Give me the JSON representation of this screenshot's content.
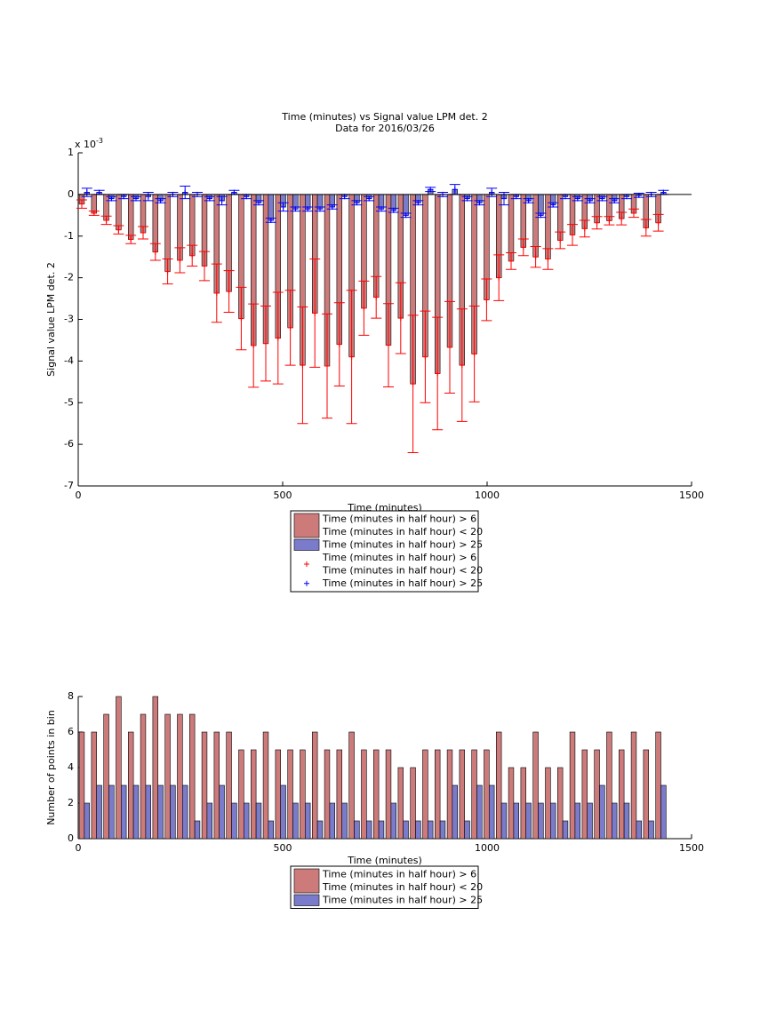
{
  "chart_data": [
    {
      "type": "bar",
      "title": "Time (minutes) vs Signal value LPM det. 2",
      "subtitle": "Data for 2016/03/26",
      "x_label": "Time (minutes)",
      "y_label": "Signal value LPM det. 2",
      "y_multiplier": {
        "base": "x 10",
        "exponent": "-3"
      },
      "x": [
        15,
        45,
        75,
        105,
        135,
        165,
        195,
        225,
        255,
        285,
        315,
        345,
        375,
        405,
        435,
        465,
        495,
        525,
        555,
        585,
        615,
        645,
        675,
        705,
        735,
        765,
        795,
        825,
        855,
        885,
        915,
        945,
        975,
        1005,
        1035,
        1065,
        1095,
        1125,
        1155,
        1185,
        1215,
        1245,
        1275,
        1305,
        1335,
        1365,
        1395,
        1425
      ],
      "xlim": [
        0,
        1500
      ],
      "xticks": [
        0,
        500,
        1000,
        1500
      ],
      "ylim": [
        -7,
        1
      ],
      "yticks": [
        -7,
        -6,
        -5,
        -4,
        -3,
        -2,
        -1,
        0,
        1
      ],
      "series": [
        {
          "name": [
            "Time (minutes in half hour) > 6",
            "Time (minutes in half hour) < 20"
          ],
          "kind": "bar",
          "color": "#cc7a7a",
          "values": [
            -0.23,
            -0.45,
            -0.62,
            -0.85,
            -1.08,
            -0.92,
            -1.38,
            -1.85,
            -1.58,
            -1.47,
            -1.72,
            -2.37,
            -2.33,
            -2.98,
            -3.63,
            -3.58,
            -3.45,
            -3.2,
            -4.1,
            -2.85,
            -4.12,
            -3.6,
            -3.9,
            -2.73,
            -2.47,
            -3.62,
            -2.97,
            -4.55,
            -3.9,
            -4.3,
            -3.67,
            -4.1,
            -3.83,
            -2.53,
            -2.0,
            -1.6,
            -1.27,
            -1.5,
            -1.55,
            -1.1,
            -0.97,
            -0.82,
            -0.68,
            -0.63,
            -0.58,
            -0.45,
            -0.8,
            -0.68
          ]
        },
        {
          "name": [
            "Time (minutes in half hour) > 25"
          ],
          "kind": "bar",
          "color": "#7b7bcc",
          "values": [
            0.05,
            0.05,
            -0.1,
            -0.05,
            -0.1,
            -0.05,
            -0.15,
            0.0,
            0.05,
            0.0,
            -0.1,
            -0.15,
            0.05,
            -0.05,
            -0.2,
            -0.62,
            -0.3,
            -0.35,
            -0.35,
            -0.35,
            -0.3,
            -0.05,
            -0.2,
            -0.1,
            -0.35,
            -0.38,
            -0.5,
            -0.2,
            0.12,
            0.0,
            0.12,
            -0.1,
            -0.2,
            0.05,
            -0.1,
            -0.05,
            -0.15,
            -0.5,
            -0.25,
            -0.05,
            -0.1,
            -0.15,
            -0.1,
            -0.15,
            -0.05,
            -0.02,
            0.0,
            0.05
          ]
        },
        {
          "name": [
            "Time (minutes in half hour) > 6",
            "Time (minutes in half hour) < 20"
          ],
          "kind": "marker",
          "color": "#ff0000",
          "values": [
            -0.23,
            -0.45,
            -0.62,
            -0.85,
            -1.08,
            -0.92,
            -1.38,
            -1.85,
            -1.58,
            -1.47,
            -1.72,
            -2.37,
            -2.33,
            -2.98,
            -3.63,
            -3.58,
            -3.45,
            -3.2,
            -4.1,
            -2.85,
            -4.12,
            -3.6,
            -3.9,
            -2.73,
            -2.47,
            -3.62,
            -2.97,
            -4.55,
            -3.9,
            -4.3,
            -3.67,
            -4.1,
            -3.83,
            -2.53,
            -2.0,
            -1.6,
            -1.27,
            -1.5,
            -1.55,
            -1.1,
            -0.97,
            -0.82,
            -0.68,
            -0.63,
            -0.58,
            -0.45,
            -0.8,
            -0.68
          ],
          "errors": [
            0.1,
            0.05,
            0.1,
            0.1,
            0.1,
            0.15,
            0.2,
            0.3,
            0.3,
            0.25,
            0.35,
            0.7,
            0.5,
            0.75,
            1.0,
            0.9,
            1.1,
            0.9,
            1.4,
            1.3,
            1.25,
            1.0,
            1.6,
            0.65,
            0.5,
            1.0,
            0.85,
            1.65,
            1.1,
            1.35,
            1.1,
            1.35,
            1.15,
            0.5,
            0.55,
            0.2,
            0.2,
            0.25,
            0.25,
            0.2,
            0.25,
            0.2,
            0.15,
            0.1,
            0.15,
            0.1,
            0.2,
            0.2
          ]
        },
        {
          "name": [
            "Time (minutes in half hour) > 25"
          ],
          "kind": "marker",
          "color": "#0000ff",
          "values": [
            0.05,
            0.05,
            -0.1,
            -0.05,
            -0.1,
            -0.05,
            -0.15,
            0.0,
            0.05,
            0.0,
            -0.1,
            -0.15,
            0.05,
            -0.05,
            -0.2,
            -0.62,
            -0.3,
            -0.35,
            -0.35,
            -0.35,
            -0.3,
            -0.05,
            -0.2,
            -0.1,
            -0.35,
            -0.38,
            -0.5,
            -0.2,
            0.12,
            0.0,
            0.12,
            -0.1,
            -0.2,
            0.05,
            -0.1,
            -0.05,
            -0.15,
            -0.5,
            -0.25,
            -0.05,
            -0.1,
            -0.15,
            -0.1,
            -0.15,
            -0.05,
            -0.02,
            0.0,
            0.05
          ],
          "errors": [
            0.1,
            0.05,
            0.05,
            0.05,
            0.05,
            0.1,
            0.05,
            0.05,
            0.15,
            0.05,
            0.05,
            0.1,
            0.05,
            0.05,
            0.05,
            0.05,
            0.1,
            0.05,
            0.05,
            0.05,
            0.05,
            0.05,
            0.05,
            0.05,
            0.05,
            0.05,
            0.05,
            0.05,
            0.05,
            0.05,
            0.12,
            0.05,
            0.05,
            0.1,
            0.15,
            0.05,
            0.05,
            0.05,
            0.05,
            0.05,
            0.05,
            0.05,
            0.05,
            0.05,
            0.05,
            0.05,
            0.05,
            0.05
          ]
        }
      ]
    },
    {
      "type": "bar",
      "x_label": "Time (minutes)",
      "y_label": "Number of points in bin",
      "x": [
        15,
        45,
        75,
        105,
        135,
        165,
        195,
        225,
        255,
        285,
        315,
        345,
        375,
        405,
        435,
        465,
        495,
        525,
        555,
        585,
        615,
        645,
        675,
        705,
        735,
        765,
        795,
        825,
        855,
        885,
        915,
        945,
        975,
        1005,
        1035,
        1065,
        1095,
        1125,
        1155,
        1185,
        1215,
        1245,
        1275,
        1305,
        1335,
        1365,
        1395,
        1425
      ],
      "xlim": [
        0,
        1500
      ],
      "xticks": [
        0,
        500,
        1000,
        1500
      ],
      "ylim": [
        0,
        8
      ],
      "yticks": [
        0,
        2,
        4,
        6,
        8
      ],
      "series": [
        {
          "name": [
            "Time (minutes in half hour) > 6",
            "Time (minutes in half hour) < 20"
          ],
          "kind": "bar",
          "color": "#cc7a7a",
          "values": [
            6,
            6,
            7,
            8,
            6,
            7,
            8,
            7,
            7,
            7,
            6,
            6,
            6,
            5,
            5,
            6,
            5,
            5,
            5,
            6,
            5,
            5,
            6,
            5,
            5,
            5,
            4,
            4,
            5,
            5,
            5,
            5,
            5,
            5,
            6,
            4,
            4,
            6,
            4,
            4,
            6,
            5,
            5,
            6,
            5,
            6,
            5,
            6
          ]
        },
        {
          "name": [
            "Time (minutes in half hour) > 25"
          ],
          "kind": "bar",
          "color": "#7b7bcc",
          "values": [
            2,
            3,
            3,
            3,
            3,
            3,
            3,
            3,
            3,
            1,
            2,
            3,
            2,
            2,
            2,
            1,
            3,
            2,
            2,
            1,
            2,
            2,
            1,
            1,
            1,
            2,
            1,
            1,
            1,
            1,
            3,
            1,
            3,
            3,
            2,
            2,
            2,
            2,
            2,
            1,
            2,
            2,
            3,
            2,
            2,
            1,
            1,
            3
          ]
        }
      ]
    }
  ]
}
